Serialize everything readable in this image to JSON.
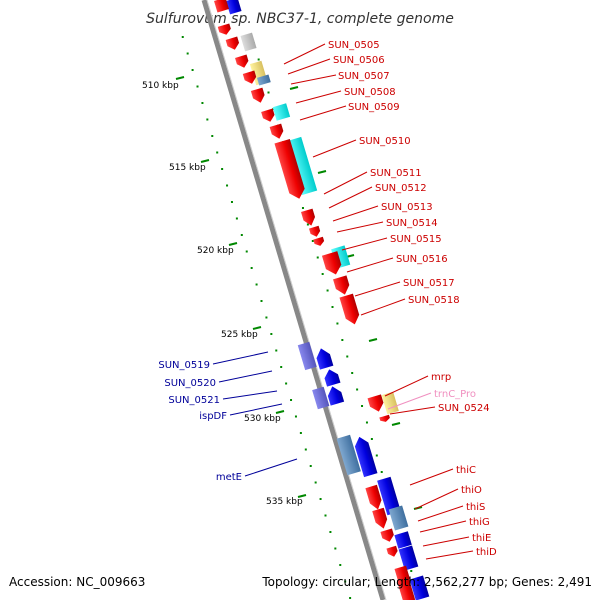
{
  "title": "Sulfurovum sp. NBC37-1, complete genome",
  "footer": {
    "accession": "Accession: NC_009663",
    "topology": "Topology: circular; Length: 2,562,277 bp; Genes: 2,491"
  },
  "scale_labels": [
    "510 kbp",
    "515 kbp",
    "520 kbp",
    "525 kbp",
    "530 kbp",
    "535 kbp"
  ],
  "right_labels": [
    {
      "text": "SUN_0505",
      "color": "#cc0000"
    },
    {
      "text": "SUN_0506",
      "color": "#cc0000"
    },
    {
      "text": "SUN_0507",
      "color": "#cc0000"
    },
    {
      "text": "SUN_0508",
      "color": "#cc0000"
    },
    {
      "text": "SUN_0509",
      "color": "#cc0000"
    },
    {
      "text": "SUN_0510",
      "color": "#cc0000"
    },
    {
      "text": "SUN_0511",
      "color": "#cc0000"
    },
    {
      "text": "SUN_0512",
      "color": "#cc0000"
    },
    {
      "text": "SUN_0513",
      "color": "#cc0000"
    },
    {
      "text": "SUN_0514",
      "color": "#cc0000"
    },
    {
      "text": "SUN_0515",
      "color": "#cc0000"
    },
    {
      "text": "SUN_0516",
      "color": "#cc0000"
    },
    {
      "text": "SUN_0517",
      "color": "#cc0000"
    },
    {
      "text": "SUN_0518",
      "color": "#cc0000"
    },
    {
      "text": "mrp",
      "color": "#cc0000"
    },
    {
      "text": "trnC_Pro",
      "color": "#f090c0"
    },
    {
      "text": "SUN_0524",
      "color": "#cc0000"
    },
    {
      "text": "thiC",
      "color": "#cc0000"
    },
    {
      "text": "thiO",
      "color": "#cc0000"
    },
    {
      "text": "thiS",
      "color": "#cc0000"
    },
    {
      "text": "thiG",
      "color": "#cc0000"
    },
    {
      "text": "thiE",
      "color": "#cc0000"
    },
    {
      "text": "thiD",
      "color": "#cc0000"
    }
  ],
  "left_labels": [
    {
      "text": "SUN_0519",
      "color": "#000099"
    },
    {
      "text": "SUN_0520",
      "color": "#000099"
    },
    {
      "text": "SUN_0521",
      "color": "#000099"
    },
    {
      "text": "ispDF",
      "color": "#000099"
    },
    {
      "text": "metE",
      "color": "#000099"
    }
  ],
  "colors": {
    "forward_cds": "#ee0000",
    "reverse_cds": "#0000dd",
    "forward_feature": "#00eeee",
    "reverse_feature": "#6666cc",
    "backbone": "#888888",
    "tick": "#008800"
  }
}
